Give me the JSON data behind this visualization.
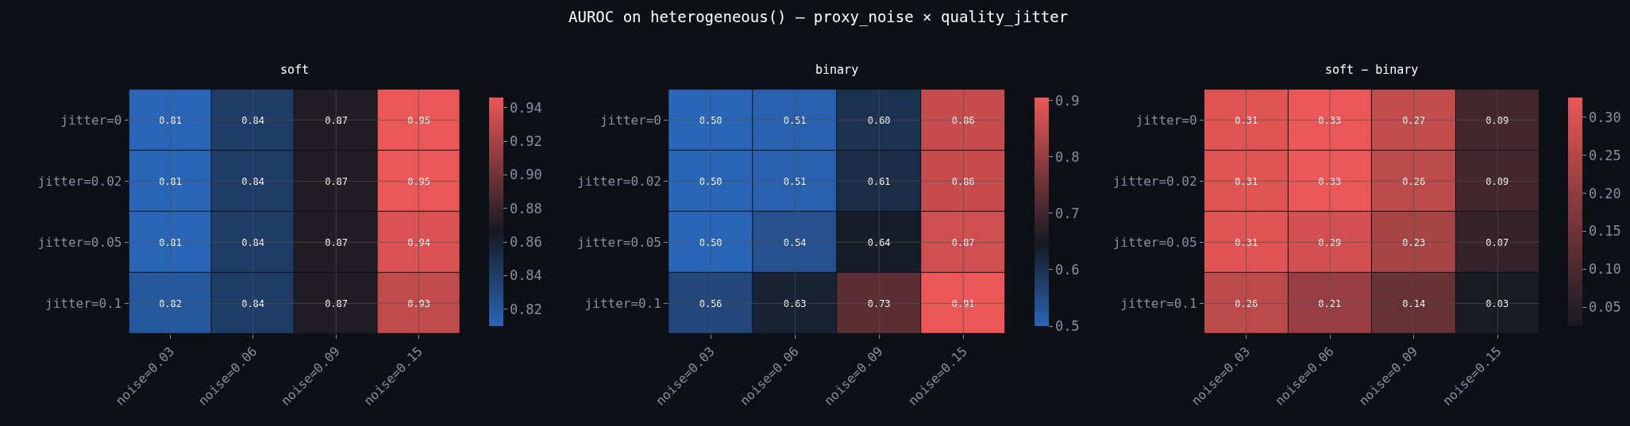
{
  "chart_data": [
    {
      "type": "heatmap",
      "title": "soft",
      "annotations": [
        "AUROC on heterogeneous() — proxy_noise × quality_jitter"
      ],
      "categories": [
        "noise=0.03",
        "noise=0.06",
        "noise=0.09",
        "noise=0.15"
      ],
      "y_categories": [
        "jitter=0",
        "jitter=0.02",
        "jitter=0.05",
        "jitter=0.1"
      ],
      "cells": [
        [
          0.81,
          0.84,
          0.87,
          0.95
        ],
        [
          0.81,
          0.84,
          0.87,
          0.95
        ],
        [
          0.81,
          0.84,
          0.87,
          0.94
        ],
        [
          0.82,
          0.84,
          0.87,
          0.93
        ]
      ],
      "clim": [
        0.81,
        0.946
      ],
      "cticks": [
        0.82,
        0.84,
        0.86,
        0.88,
        {
          "value": 0.9,
          "label": "0.90"
        },
        0.92,
        0.94
      ],
      "data_labels": true,
      "grid": true
    },
    {
      "type": "heatmap",
      "title": "binary",
      "categories": [
        "noise=0.03",
        "noise=0.06",
        "noise=0.09",
        "noise=0.15"
      ],
      "y_categories": [
        "jitter=0",
        "jitter=0.02",
        "jitter=0.05",
        "jitter=0.1"
      ],
      "cells": [
        [
          0.5,
          0.51,
          0.6,
          0.86
        ],
        [
          0.5,
          0.51,
          0.61,
          0.86
        ],
        [
          0.5,
          0.54,
          0.64,
          0.87
        ],
        [
          0.56,
          0.63,
          0.73,
          0.91
        ]
      ],
      "cell_labels": [
        [
          "0.50",
          "0.51",
          "0.60",
          "0.86"
        ],
        [
          "0.50",
          "0.51",
          "0.61",
          "0.86"
        ],
        [
          "0.50",
          "0.54",
          "0.64",
          "0.87"
        ],
        [
          "0.56",
          "0.63",
          "0.73",
          "0.91"
        ]
      ],
      "clim": [
        0.5,
        0.905
      ],
      "cticks": [
        0.5,
        0.6,
        0.7,
        0.8,
        0.9
      ],
      "grid": true
    },
    {
      "type": "heatmap",
      "title": "soft − binary",
      "categories": [
        "noise=0.03",
        "noise=0.06",
        "noise=0.09",
        "noise=0.15"
      ],
      "y_categories": [
        "jitter=0",
        "jitter=0.02",
        "jitter=0.05",
        "jitter=0.1"
      ],
      "cells": [
        [
          0.31,
          0.33,
          0.27,
          0.09
        ],
        [
          0.31,
          0.33,
          0.26,
          0.09
        ],
        [
          0.31,
          0.29,
          0.23,
          0.07
        ],
        [
          0.26,
          0.21,
          0.14,
          0.03
        ]
      ],
      "clim": [
        0.025,
        0.326
      ],
      "cticks": [
        0.05,
        {
          "value": 0.1,
          "label": "0.10"
        },
        0.15,
        {
          "value": 0.2,
          "label": "0.20"
        },
        0.25,
        {
          "value": 0.3,
          "label": "0.30"
        }
      ],
      "data_labels": true,
      "grid": true
    }
  ]
}
